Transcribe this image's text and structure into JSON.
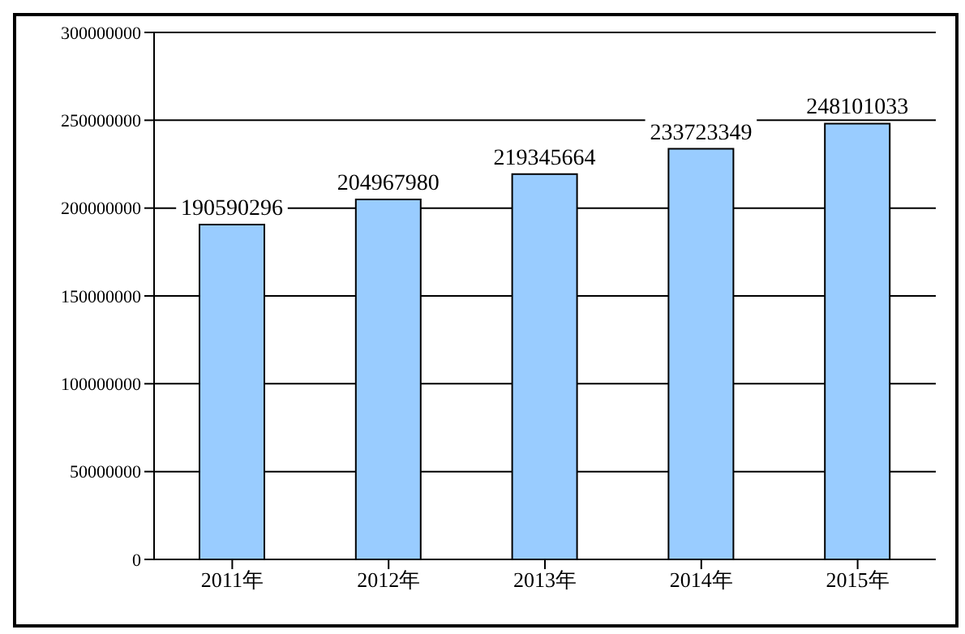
{
  "chart_data": {
    "type": "bar",
    "categories": [
      "2011年",
      "2012年",
      "2013年",
      "2014年",
      "2015年"
    ],
    "values": [
      190590296,
      204967980,
      219345664,
      233723349,
      248101033
    ],
    "color": "#99ccff",
    "ylim": [
      0,
      300000000
    ],
    "yticks": [
      0,
      50000000,
      100000000,
      150000000,
      200000000,
      250000000,
      300000000
    ],
    "grid": "y",
    "data_labels": true
  }
}
